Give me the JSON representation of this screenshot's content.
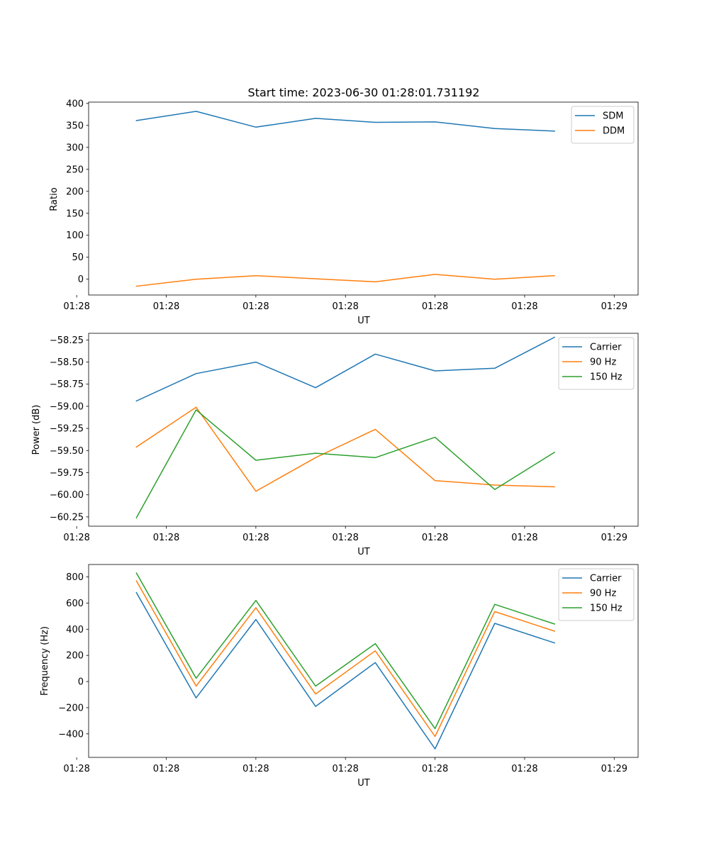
{
  "chart_data": [
    {
      "type": "line",
      "title": "Start time: 2023-06-30 01:28:01.731192",
      "xlabel": "UT",
      "ylabel": "Ratio",
      "x": [
        1,
        2,
        3,
        4,
        5,
        6,
        7,
        8
      ],
      "x_range": [
        0.2,
        9.4
      ],
      "xticks": [
        0,
        1.5,
        3,
        4.5,
        6,
        7.5,
        9
      ],
      "xtick_labels": [
        "01:28",
        "01:28",
        "01:28",
        "01:28",
        "01:28",
        "01:28",
        "01:29"
      ],
      "ylim": [
        -36,
        403
      ],
      "yticks": [
        0,
        50,
        100,
        150,
        200,
        250,
        300,
        350,
        400
      ],
      "ytick_labels": [
        "0",
        "50",
        "100",
        "150",
        "200",
        "250",
        "300",
        "350",
        "400"
      ],
      "legend": "upper right",
      "series": [
        {
          "name": "SDM",
          "color": "#1f77b4",
          "values": [
            361,
            382,
            346,
            366,
            357,
            358,
            343,
            337
          ]
        },
        {
          "name": "DDM",
          "color": "#ff7f0e",
          "values": [
            -16,
            0,
            8,
            1,
            -6,
            11,
            0,
            8
          ]
        }
      ]
    },
    {
      "type": "line",
      "xlabel": "UT",
      "ylabel": "Power (dB)",
      "x": [
        1,
        2,
        3,
        4,
        5,
        6,
        7,
        8
      ],
      "x_range": [
        0.2,
        9.4
      ],
      "xticks": [
        0,
        1.5,
        3,
        4.5,
        6,
        7.5,
        9
      ],
      "xtick_labels": [
        "01:28",
        "01:28",
        "01:28",
        "01:28",
        "01:28",
        "01:28",
        "01:29"
      ],
      "ylim": [
        -60.355,
        -58.175
      ],
      "yticks": [
        -60.25,
        -60.0,
        -59.75,
        -59.5,
        -59.25,
        -59.0,
        -58.75,
        -58.5,
        -58.25
      ],
      "ytick_labels": [
        "−60.25",
        "−60.00",
        "−59.75",
        "−59.50",
        "−59.25",
        "−59.00",
        "−58.75",
        "−58.50",
        "−58.25"
      ],
      "legend": "upper right",
      "series": [
        {
          "name": "Carrier",
          "color": "#1f77b4",
          "values": [
            -58.94,
            -58.63,
            -58.5,
            -58.79,
            -58.41,
            -58.6,
            -58.57,
            -58.22
          ]
        },
        {
          "name": "90 Hz",
          "color": "#ff7f0e",
          "values": [
            -59.46,
            -59.01,
            -59.96,
            -59.58,
            -59.26,
            -59.84,
            -59.89,
            -59.91
          ]
        },
        {
          "name": "150 Hz",
          "color": "#2ca02c",
          "values": [
            -60.26,
            -59.04,
            -59.61,
            -59.53,
            -59.58,
            -59.35,
            -59.94,
            -59.52
          ]
        }
      ]
    },
    {
      "type": "line",
      "xlabel": "UT",
      "ylabel": "Frequency (Hz)",
      "x": [
        1,
        2,
        3,
        4,
        5,
        6,
        7,
        8
      ],
      "x_range": [
        0.2,
        9.4
      ],
      "xticks": [
        0,
        1.5,
        3,
        4.5,
        6,
        7.5,
        9
      ],
      "xtick_labels": [
        "01:28",
        "01:28",
        "01:28",
        "01:28",
        "01:28",
        "01:28",
        "01:29"
      ],
      "ylim": [
        -580,
        895
      ],
      "yticks": [
        -400,
        -200,
        0,
        200,
        400,
        600,
        800
      ],
      "ytick_labels": [
        "−400",
        "−200",
        "0",
        "200",
        "400",
        "600",
        "800"
      ],
      "legend": "upper right",
      "series": [
        {
          "name": "Carrier",
          "color": "#1f77b4",
          "values": [
            680,
            -125,
            475,
            -190,
            145,
            -515,
            445,
            295
          ]
        },
        {
          "name": "90 Hz",
          "color": "#ff7f0e",
          "values": [
            770,
            -35,
            565,
            -95,
            235,
            -420,
            535,
            385
          ]
        },
        {
          "name": "150 Hz",
          "color": "#2ca02c",
          "values": [
            830,
            25,
            620,
            -35,
            290,
            -360,
            590,
            440
          ]
        }
      ]
    }
  ]
}
